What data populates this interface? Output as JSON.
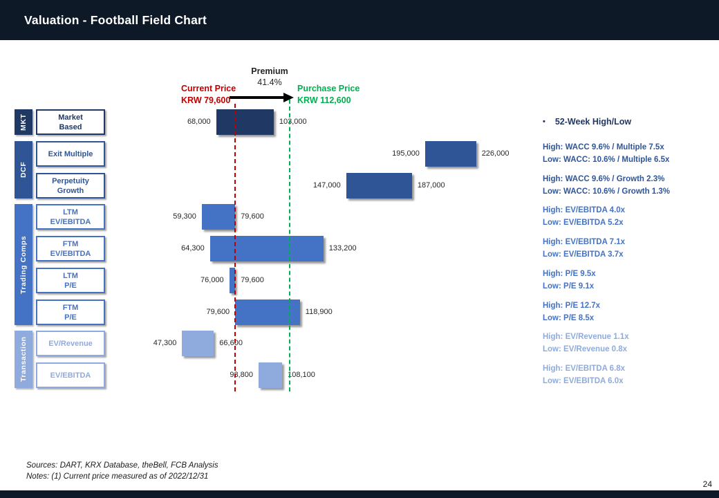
{
  "slide": {
    "title": "Valuation - Football Field Chart",
    "page_number": "24"
  },
  "annotations": {
    "premium": {
      "label": "Premium",
      "value": "41.4%"
    },
    "current_price": {
      "label": "Current Price",
      "value": "KRW 79,600",
      "color": "#C00000"
    },
    "purchase_price": {
      "label": "Purchase Price",
      "value": "KRW 112,600",
      "color": "#00B050"
    }
  },
  "sidebar": {
    "groups": [
      {
        "id": "mkt",
        "label": "MKT",
        "color": "#1F3864",
        "rows": [
          0
        ]
      },
      {
        "id": "dcf",
        "label": "DCF",
        "color": "#2F5597",
        "rows": [
          1,
          2
        ]
      },
      {
        "id": "trading",
        "label": "Trading Comps",
        "color": "#4472C4",
        "rows": [
          3,
          4,
          5,
          6
        ]
      },
      {
        "id": "transaction",
        "label": "Transaction",
        "color": "#8FAADC",
        "rows": [
          7,
          8
        ]
      }
    ]
  },
  "right_panel": {
    "bullet": "•",
    "heading": "52-Week High/Low"
  },
  "chart_data": {
    "type": "bar",
    "subtype": "horizontal floating-range (football field)",
    "unit": "KRW per share",
    "x_range": [
      40000,
      240000
    ],
    "grid": false,
    "reference_lines": [
      {
        "name": "Current Price",
        "value": 79600,
        "style": "dashed",
        "color": "#C00000"
      },
      {
        "name": "Purchase Price",
        "value": 112600,
        "style": "dashed",
        "color": "#00B050"
      }
    ],
    "rows": [
      {
        "group": "mkt",
        "method": "Market\nBased",
        "low": 68000,
        "high": 103000,
        "low_label": "68,000",
        "high_label": "103,000",
        "note_high": "",
        "note_low": ""
      },
      {
        "group": "dcf",
        "method": "Exit Multiple",
        "low": 195000,
        "high": 226000,
        "low_label": "195,000",
        "high_label": "226,000",
        "note_high": "High: WACC 9.6% / Multiple 7.5x",
        "note_low": "Low: WACC: 10.6% / Multiple 6.5x"
      },
      {
        "group": "dcf",
        "method": "Perpetuity\nGrowth",
        "low": 147000,
        "high": 187000,
        "low_label": "147,000",
        "high_label": "187,000",
        "note_high": "High: WACC 9.6% / Growth 2.3%",
        "note_low": "Low: WACC: 10.6% / Growth 1.3%"
      },
      {
        "group": "trading",
        "method": "LTM\nEV/EBITDA",
        "low": 59300,
        "high": 79600,
        "low_label": "59,300",
        "high_label": "79,600",
        "note_high": "High: EV/EBITDA 4.0x",
        "note_low": "Low: EV/EBITDA  5.2x"
      },
      {
        "group": "trading",
        "method": "FTM\nEV/EBITDA",
        "low": 64300,
        "high": 133200,
        "low_label": "64,300",
        "high_label": "133,200",
        "note_high": "High: EV/EBITDA 7.1x",
        "note_low": "Low: EV/EBITDA  3.7x"
      },
      {
        "group": "trading",
        "method": "LTM\nP/E",
        "low": 76000,
        "high": 79600,
        "low_label": "76,000",
        "high_label": "79,600",
        "note_high": "High: P/E 9.5x",
        "note_low": "Low: P/E 9.1x"
      },
      {
        "group": "trading",
        "method": "FTM\nP/E",
        "low": 79600,
        "high": 118900,
        "low_label": "79,600",
        "high_label": "118,900",
        "note_high": "High: P/E 12.7x",
        "note_low": "Low: P/E 8.5x"
      },
      {
        "group": "transaction",
        "method": "EV/Revenue",
        "low": 47300,
        "high": 66600,
        "low_label": "47,300",
        "high_label": "66,600",
        "note_high": "High: EV/Revenue 1.1x",
        "note_low": "Low: EV/Revenue 0.8x"
      },
      {
        "group": "transaction",
        "method": "EV/EBITDA",
        "low": 93800,
        "high": 108100,
        "low_label": "93,800",
        "high_label": "108,100",
        "note_high": "High: EV/EBITDA 6.8x",
        "note_low": "Low: EV/EBITDA 6.0x"
      }
    ]
  },
  "footer": {
    "sources": "Sources: DART, KRX Database, theBell, FCB Analysis",
    "notes": "Notes: (1) Current price measured as of 2022/12/31"
  },
  "colors": {
    "header_bg": "#0d1926",
    "dark_navy": "#1F3864",
    "medium_blue": "#2F5597",
    "bright_blue": "#4472C4",
    "light_blue": "#8FAADC",
    "red": "#C00000",
    "green": "#00B050",
    "text": "#262626",
    "arrow": "#000000"
  }
}
